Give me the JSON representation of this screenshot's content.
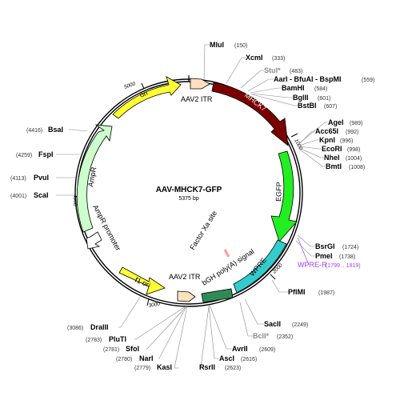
{
  "plasmid": {
    "name": "AAV-MHCK7-GFP",
    "size": "5375 bp"
  },
  "features": {
    "ori": "ori",
    "itr_left": "AAV2 ITR",
    "mhck7": "MHCK7",
    "egfp": "EGFP",
    "wpre": "WPRE",
    "wpre_r": "WPRE-R",
    "wpre_r_range": "(1799 .. 1819)",
    "polya": "bGH poly(A) signal",
    "factor_xa": "Factor Xa site",
    "itr_right": "AAV2 ITR",
    "f1_ori": "f1 ori",
    "ampr_promoter": "AmpR promoter",
    "ampr": "AmpR"
  },
  "ticks": {
    "t1000": "1000",
    "t2000": "2000",
    "t3000": "3000",
    "t4000": "4000",
    "t5000": "5000"
  },
  "sites": {
    "mlu": {
      "name": "MluI",
      "pos": "(150)"
    },
    "xcm": {
      "name": "XcmI",
      "pos": "(333)"
    },
    "stu": {
      "name": "StuI*",
      "pos": "(483)"
    },
    "aar": {
      "name": "AarI - BfuAI - BspMI",
      "pos": "(559)"
    },
    "bam": {
      "name": "BamHI",
      "pos": "(584)"
    },
    "bgl": {
      "name": "BglII",
      "pos": "(601)"
    },
    "bst": {
      "name": "BstBI",
      "pos": "(607)"
    },
    "age": {
      "name": "AgeI",
      "pos": "(989)"
    },
    "acc": {
      "name": "Acc65I",
      "pos": "(992)"
    },
    "kpn": {
      "name": "KpnI",
      "pos": "(996)"
    },
    "eco": {
      "name": "EcoRI",
      "pos": "(998)"
    },
    "nhe": {
      "name": "NheI",
      "pos": "(1004)"
    },
    "bmt": {
      "name": "BmtI",
      "pos": "(1008)"
    },
    "bsr": {
      "name": "BsrGI",
      "pos": "(1724)"
    },
    "pme": {
      "name": "PmeI",
      "pos": "(1738)"
    },
    "pfl": {
      "name": "PflMI",
      "pos": "(1987)"
    },
    "sac": {
      "name": "SacII",
      "pos": "(2249)"
    },
    "bcl": {
      "name": "BclI*",
      "pos": "(2352)"
    },
    "avr": {
      "name": "AvrII",
      "pos": "(2609)"
    },
    "asc": {
      "name": "AscI",
      "pos": "(2616)"
    },
    "rsr": {
      "name": "RsrII",
      "pos": "(2623)"
    },
    "kas": {
      "name": "KasI",
      "pos": "(2779)"
    },
    "nar": {
      "name": "NarI",
      "pos": "(2780)"
    },
    "sfo": {
      "name": "SfoI",
      "pos": "(2781)"
    },
    "plu": {
      "name": "PluTI",
      "pos": "(2783)"
    },
    "dra": {
      "name": "DraIII",
      "pos": "(3086)"
    },
    "sca": {
      "name": "ScaI",
      "pos": "(4001)"
    },
    "pvu": {
      "name": "PvuI",
      "pos": "(4113)"
    },
    "fsp": {
      "name": "FspI",
      "pos": "(4259)"
    },
    "bsa": {
      "name": "BsaI",
      "pos": "(4416)"
    }
  },
  "colors": {
    "ori": "#ffff33",
    "itr": "#ffe0c0",
    "mhck7": "#7a0000",
    "egfp": "#22ee22",
    "wpre": "#33cccc",
    "polya": "#2e8b57",
    "f1": "#ffff33",
    "ampr": "#ccffcc",
    "ampr_promoter": "#ffffff",
    "wpre_r": "#a040ff",
    "gray_site": "#8a8a8a"
  }
}
